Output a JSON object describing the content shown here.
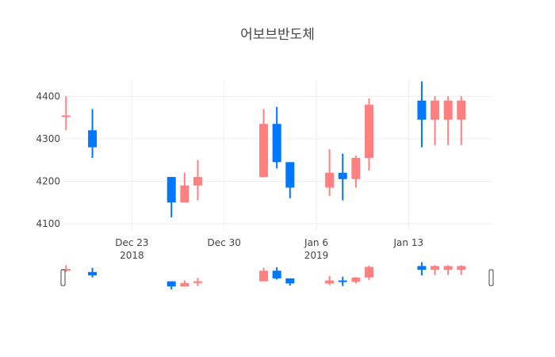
{
  "chart_data": {
    "type": "candlestick",
    "title": "어보브반도체",
    "xlabel": "",
    "ylabel": "",
    "ylim": [
      4085,
      4440
    ],
    "x_range": [
      "2018-12-18",
      "2019-01-19"
    ],
    "grid": true,
    "range_slider": true,
    "colors": {
      "increasing": "#ff8080",
      "decreasing": "#0077ff"
    },
    "y_ticks": [
      "4100",
      "4200",
      "4300",
      "4400"
    ],
    "x_ticks": [
      {
        "date": "2018-12-23",
        "label": "Dec 23",
        "year": "2018"
      },
      {
        "date": "2018-12-30",
        "label": "Dec 30",
        "year": ""
      },
      {
        "date": "2019-01-06",
        "label": "Jan 6",
        "year": "2019"
      },
      {
        "date": "2019-01-13",
        "label": "Jan 13",
        "year": ""
      }
    ],
    "candles": [
      {
        "date": "2018-12-18",
        "open": 4355,
        "high": 4400,
        "low": 4320,
        "close": 4355
      },
      {
        "date": "2018-12-20",
        "open": 4320,
        "high": 4370,
        "low": 4255,
        "close": 4280
      },
      {
        "date": "2018-12-26",
        "open": 4210,
        "high": 4210,
        "low": 4115,
        "close": 4150
      },
      {
        "date": "2018-12-27",
        "open": 4150,
        "high": 4220,
        "low": 4150,
        "close": 4190
      },
      {
        "date": "2018-12-28",
        "open": 4190,
        "high": 4250,
        "low": 4155,
        "close": 4210
      },
      {
        "date": "2019-01-02",
        "open": 4210,
        "high": 4370,
        "low": 4210,
        "close": 4335
      },
      {
        "date": "2019-01-03",
        "open": 4335,
        "high": 4375,
        "low": 4230,
        "close": 4245
      },
      {
        "date": "2019-01-04",
        "open": 4245,
        "high": 4245,
        "low": 4160,
        "close": 4185
      },
      {
        "date": "2019-01-07",
        "open": 4185,
        "high": 4275,
        "low": 4165,
        "close": 4220
      },
      {
        "date": "2019-01-08",
        "open": 4220,
        "high": 4265,
        "low": 4155,
        "close": 4205
      },
      {
        "date": "2019-01-09",
        "open": 4205,
        "high": 4260,
        "low": 4185,
        "close": 4255
      },
      {
        "date": "2019-01-10",
        "open": 4255,
        "high": 4395,
        "low": 4225,
        "close": 4380
      },
      {
        "date": "2019-01-14",
        "open": 4390,
        "high": 4435,
        "low": 4280,
        "close": 4345
      },
      {
        "date": "2019-01-15",
        "open": 4345,
        "high": 4400,
        "low": 4285,
        "close": 4390
      },
      {
        "date": "2019-01-16",
        "open": 4345,
        "high": 4400,
        "low": 4285,
        "close": 4390
      },
      {
        "date": "2019-01-17",
        "open": 4345,
        "high": 4400,
        "low": 4285,
        "close": 4390
      }
    ]
  }
}
